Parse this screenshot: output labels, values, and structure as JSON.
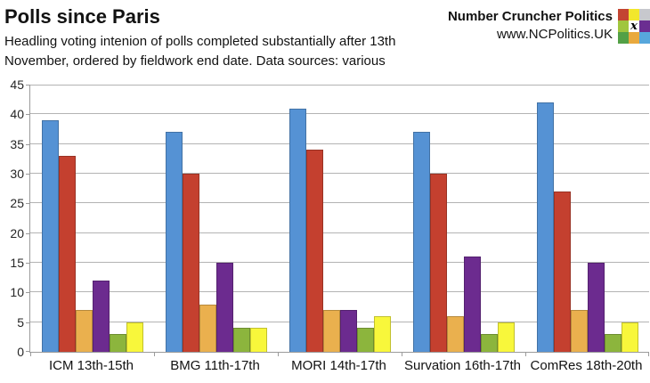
{
  "header": {
    "title": "Polls since Paris",
    "subtitle_lines": [
      "Headling voting intenion of polls completed substantially after 13th",
      "November, ordered by fieldwork end date. Data sources: various"
    ],
    "brand": {
      "name": "Number Cruncher Politics",
      "url": "www.NCPolitics.UK"
    },
    "logo": {
      "grid_colors": [
        [
          "#c34532",
          "#f2e72c",
          "#c7c8cd"
        ],
        [
          "#a0c63e",
          "#ffffff",
          "#6b2e91"
        ],
        [
          "#53a046",
          "#e9a93e",
          "#57a7dc"
        ]
      ],
      "center_glyph": "x"
    }
  },
  "chart_data": {
    "type": "bar",
    "title": "Polls since Paris",
    "subtitle": "Headling voting intenion of polls completed substantially after 13th November, ordered by fieldwork end date. Data sources: various",
    "categories": [
      "ICM 13th-15th",
      "BMG 11th-17th",
      "MORI 14th-17th",
      "Survation 16th-17th",
      "ComRes 18th-20th"
    ],
    "series": [
      {
        "name": "blue",
        "color": "#5592d4",
        "values": [
          39,
          37,
          41,
          37,
          42
        ]
      },
      {
        "name": "red",
        "color": "#c4402f",
        "values": [
          33,
          30,
          34,
          30,
          27
        ]
      },
      {
        "name": "orange",
        "color": "#eab04e",
        "values": [
          7,
          8,
          7,
          6,
          7
        ]
      },
      {
        "name": "purple",
        "color": "#6c2b8f",
        "values": [
          12,
          15,
          7,
          16,
          15
        ]
      },
      {
        "name": "green",
        "color": "#8cb53d",
        "values": [
          3,
          4,
          4,
          3,
          3
        ]
      },
      {
        "name": "yellow",
        "color": "#f8f73b",
        "values": [
          5,
          4,
          6,
          5,
          5
        ]
      }
    ],
    "xlabel": "",
    "ylabel": "",
    "ylim": [
      0,
      45
    ],
    "ytick_step": 5,
    "grid": true,
    "legend": "none",
    "gridline_color": "#b3b3b3",
    "axis_color": "#9b9b9b"
  }
}
